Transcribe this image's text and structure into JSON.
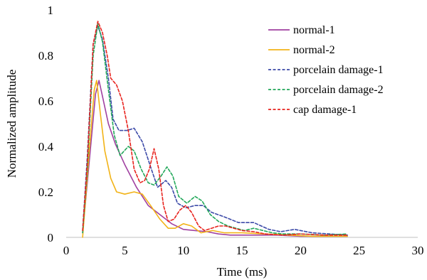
{
  "chart_data": {
    "type": "line",
    "title": "",
    "xlabel": "Time (ms)",
    "ylabel": "Normalized amplitude",
    "xlim": [
      0,
      30
    ],
    "ylim": [
      0,
      1
    ],
    "xticks": [
      0,
      5,
      10,
      15,
      20,
      25,
      30
    ],
    "yticks": [
      0,
      0.2,
      0.4,
      0.6,
      0.8,
      1
    ],
    "ytick_labels": [
      "0",
      "0.2",
      "0.4",
      "0.6",
      "0.8",
      "1"
    ],
    "grid": false,
    "legend_position": "top-right",
    "series": [
      {
        "name": "normal-1",
        "color": "#A040A0",
        "dash": "solid",
        "points": [
          [
            1.4,
            0.02
          ],
          [
            2.0,
            0.35
          ],
          [
            2.5,
            0.63
          ],
          [
            2.8,
            0.69
          ],
          [
            3.1,
            0.62
          ],
          [
            3.6,
            0.5
          ],
          [
            4.2,
            0.41
          ],
          [
            5.0,
            0.32
          ],
          [
            6.0,
            0.22
          ],
          [
            7.0,
            0.14
          ],
          [
            8.0,
            0.1
          ],
          [
            9.0,
            0.06
          ],
          [
            10.0,
            0.035
          ],
          [
            11.0,
            0.03
          ],
          [
            12.0,
            0.025
          ],
          [
            13.0,
            0.015
          ],
          [
            14.0,
            0.01
          ],
          [
            16.0,
            0.01
          ],
          [
            18.0,
            0.01
          ],
          [
            20.0,
            0.005
          ],
          [
            22.0,
            0.005
          ],
          [
            24.0,
            0.005
          ]
        ]
      },
      {
        "name": "normal-2",
        "color": "#F2B318",
        "dash": "solid",
        "points": [
          [
            1.4,
            0.0
          ],
          [
            2.0,
            0.4
          ],
          [
            2.4,
            0.65
          ],
          [
            2.6,
            0.69
          ],
          [
            2.9,
            0.55
          ],
          [
            3.3,
            0.38
          ],
          [
            3.8,
            0.26
          ],
          [
            4.3,
            0.2
          ],
          [
            5.0,
            0.19
          ],
          [
            5.8,
            0.2
          ],
          [
            6.5,
            0.19
          ],
          [
            7.2,
            0.14
          ],
          [
            8.0,
            0.08
          ],
          [
            8.7,
            0.04
          ],
          [
            9.3,
            0.04
          ],
          [
            10.0,
            0.06
          ],
          [
            10.7,
            0.05
          ],
          [
            11.5,
            0.02
          ],
          [
            12.5,
            0.03
          ],
          [
            13.5,
            0.02
          ],
          [
            15.0,
            0.02
          ],
          [
            17.0,
            0.015
          ],
          [
            19.0,
            0.01
          ],
          [
            21.0,
            0.005
          ],
          [
            24.0,
            0.005
          ]
        ]
      },
      {
        "name": "porcelain damage-1",
        "color": "#3C4AA8",
        "dash": "dashed",
        "points": [
          [
            1.4,
            0.03
          ],
          [
            1.8,
            0.35
          ],
          [
            2.3,
            0.85
          ],
          [
            2.7,
            0.93
          ],
          [
            3.1,
            0.87
          ],
          [
            3.6,
            0.7
          ],
          [
            4.0,
            0.52
          ],
          [
            4.5,
            0.47
          ],
          [
            5.2,
            0.47
          ],
          [
            5.8,
            0.48
          ],
          [
            6.5,
            0.42
          ],
          [
            7.2,
            0.31
          ],
          [
            7.8,
            0.22
          ],
          [
            8.5,
            0.25
          ],
          [
            9.0,
            0.22
          ],
          [
            9.5,
            0.15
          ],
          [
            10.2,
            0.13
          ],
          [
            11.0,
            0.14
          ],
          [
            11.7,
            0.14
          ],
          [
            12.4,
            0.11
          ],
          [
            13.5,
            0.09
          ],
          [
            14.7,
            0.065
          ],
          [
            16.0,
            0.065
          ],
          [
            17.3,
            0.035
          ],
          [
            18.3,
            0.025
          ],
          [
            19.5,
            0.035
          ],
          [
            21.0,
            0.02
          ],
          [
            22.5,
            0.015
          ],
          [
            24.0,
            0.01
          ]
        ]
      },
      {
        "name": "porcelain damage-2",
        "color": "#22A85A",
        "dash": "dashed",
        "points": [
          [
            1.4,
            0.02
          ],
          [
            1.8,
            0.3
          ],
          [
            2.3,
            0.8
          ],
          [
            2.7,
            0.94
          ],
          [
            3.1,
            0.86
          ],
          [
            3.6,
            0.65
          ],
          [
            4.1,
            0.45
          ],
          [
            4.6,
            0.36
          ],
          [
            5.3,
            0.4
          ],
          [
            5.8,
            0.38
          ],
          [
            6.4,
            0.3
          ],
          [
            7.0,
            0.24
          ],
          [
            7.5,
            0.23
          ],
          [
            8.1,
            0.27
          ],
          [
            8.6,
            0.31
          ],
          [
            9.1,
            0.27
          ],
          [
            9.6,
            0.18
          ],
          [
            10.3,
            0.15
          ],
          [
            11.0,
            0.18
          ],
          [
            11.6,
            0.16
          ],
          [
            12.3,
            0.1
          ],
          [
            13.0,
            0.07
          ],
          [
            13.8,
            0.05
          ],
          [
            14.5,
            0.04
          ],
          [
            15.2,
            0.03
          ],
          [
            16.0,
            0.04
          ],
          [
            16.8,
            0.03
          ],
          [
            17.6,
            0.02
          ],
          [
            18.5,
            0.015
          ],
          [
            20.0,
            0.015
          ],
          [
            22.0,
            0.01
          ],
          [
            24.0,
            0.015
          ]
        ]
      },
      {
        "name": "cap damage-1",
        "color": "#E8231E",
        "dash": "dashed",
        "points": [
          [
            1.4,
            0.03
          ],
          [
            1.8,
            0.32
          ],
          [
            2.3,
            0.85
          ],
          [
            2.7,
            0.95
          ],
          [
            3.1,
            0.9
          ],
          [
            3.5,
            0.8
          ],
          [
            3.8,
            0.7
          ],
          [
            4.3,
            0.67
          ],
          [
            4.8,
            0.6
          ],
          [
            5.3,
            0.47
          ],
          [
            5.8,
            0.3
          ],
          [
            6.3,
            0.24
          ],
          [
            6.7,
            0.25
          ],
          [
            7.1,
            0.3
          ],
          [
            7.5,
            0.39
          ],
          [
            7.9,
            0.3
          ],
          [
            8.3,
            0.14
          ],
          [
            8.7,
            0.07
          ],
          [
            9.2,
            0.08
          ],
          [
            9.7,
            0.12
          ],
          [
            10.2,
            0.14
          ],
          [
            10.7,
            0.11
          ],
          [
            11.3,
            0.05
          ],
          [
            11.8,
            0.03
          ],
          [
            12.4,
            0.04
          ],
          [
            13.0,
            0.05
          ],
          [
            13.6,
            0.05
          ],
          [
            14.3,
            0.04
          ],
          [
            15.0,
            0.03
          ],
          [
            16.0,
            0.025
          ],
          [
            17.0,
            0.015
          ],
          [
            18.5,
            0.01
          ],
          [
            20.0,
            0.015
          ],
          [
            22.0,
            0.01
          ],
          [
            24.0,
            0.01
          ]
        ]
      }
    ]
  }
}
